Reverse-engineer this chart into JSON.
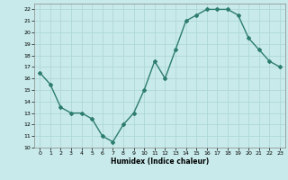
{
  "x": [
    0,
    1,
    2,
    3,
    4,
    5,
    6,
    7,
    8,
    9,
    10,
    11,
    12,
    13,
    14,
    15,
    16,
    17,
    18,
    19,
    20,
    21,
    22,
    23
  ],
  "y": [
    16.5,
    15.5,
    13.5,
    13.0,
    13.0,
    12.5,
    11.0,
    10.5,
    12.0,
    13.0,
    15.0,
    17.5,
    16.0,
    18.5,
    21.0,
    21.5,
    22.0,
    22.0,
    22.0,
    21.5,
    19.5,
    18.5,
    17.5,
    17.0
  ],
  "xlabel": "Humidex (Indice chaleur)",
  "ylim": [
    10,
    22.5
  ],
  "xlim": [
    -0.5,
    23.5
  ],
  "yticks": [
    10,
    11,
    12,
    13,
    14,
    15,
    16,
    17,
    18,
    19,
    20,
    21,
    22
  ],
  "xticks": [
    0,
    1,
    2,
    3,
    4,
    5,
    6,
    7,
    8,
    9,
    10,
    11,
    12,
    13,
    14,
    15,
    16,
    17,
    18,
    19,
    20,
    21,
    22,
    23
  ],
  "line_color": "#2d7d6e",
  "bg_color": "#c8eaea",
  "grid_color": "#b0d8d8",
  "marker": "D",
  "marker_size": 2,
  "linewidth": 1.0
}
